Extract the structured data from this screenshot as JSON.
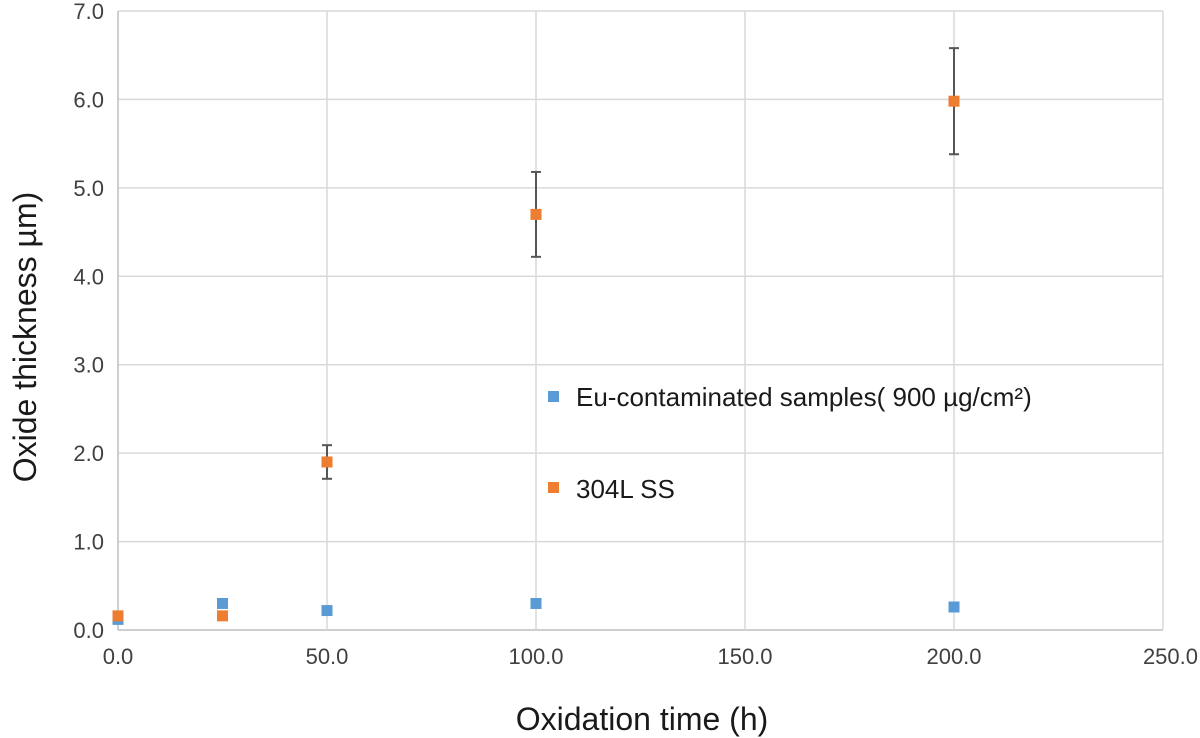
{
  "chart_data": {
    "type": "scatter",
    "title": "",
    "xlabel": "Oxidation time (h)",
    "ylabel": "Oxide thickness  µm)",
    "xlim": [
      0,
      250
    ],
    "ylim": [
      0,
      7
    ],
    "x_ticks": [
      "0.0",
      "50.0",
      "100.0",
      "150.0",
      "200.0",
      "250.0"
    ],
    "y_ticks": [
      "0.0",
      "1.0",
      "2.0",
      "3.0",
      "4.0",
      "5.0",
      "6.0",
      "7.0"
    ],
    "grid": true,
    "legend_position": "center-right",
    "series": [
      {
        "name": "Eu-contaminated samples( 900 µg/cm²)",
        "color": "#5b9bd5",
        "marker": "square",
        "points": [
          {
            "x": 0,
            "y": 0.12
          },
          {
            "x": 25,
            "y": 0.3
          },
          {
            "x": 50,
            "y": 0.22
          },
          {
            "x": 100,
            "y": 0.3
          },
          {
            "x": 200,
            "y": 0.26
          }
        ]
      },
      {
        "name": "304L SS",
        "color": "#ed7d31",
        "marker": "square",
        "points": [
          {
            "x": 0,
            "y": 0.16
          },
          {
            "x": 25,
            "y": 0.16
          },
          {
            "x": 50,
            "y": 1.9,
            "err": 0.19
          },
          {
            "x": 100,
            "y": 4.7,
            "err": 0.48
          },
          {
            "x": 200,
            "y": 5.98,
            "err": 0.6
          }
        ]
      }
    ]
  }
}
